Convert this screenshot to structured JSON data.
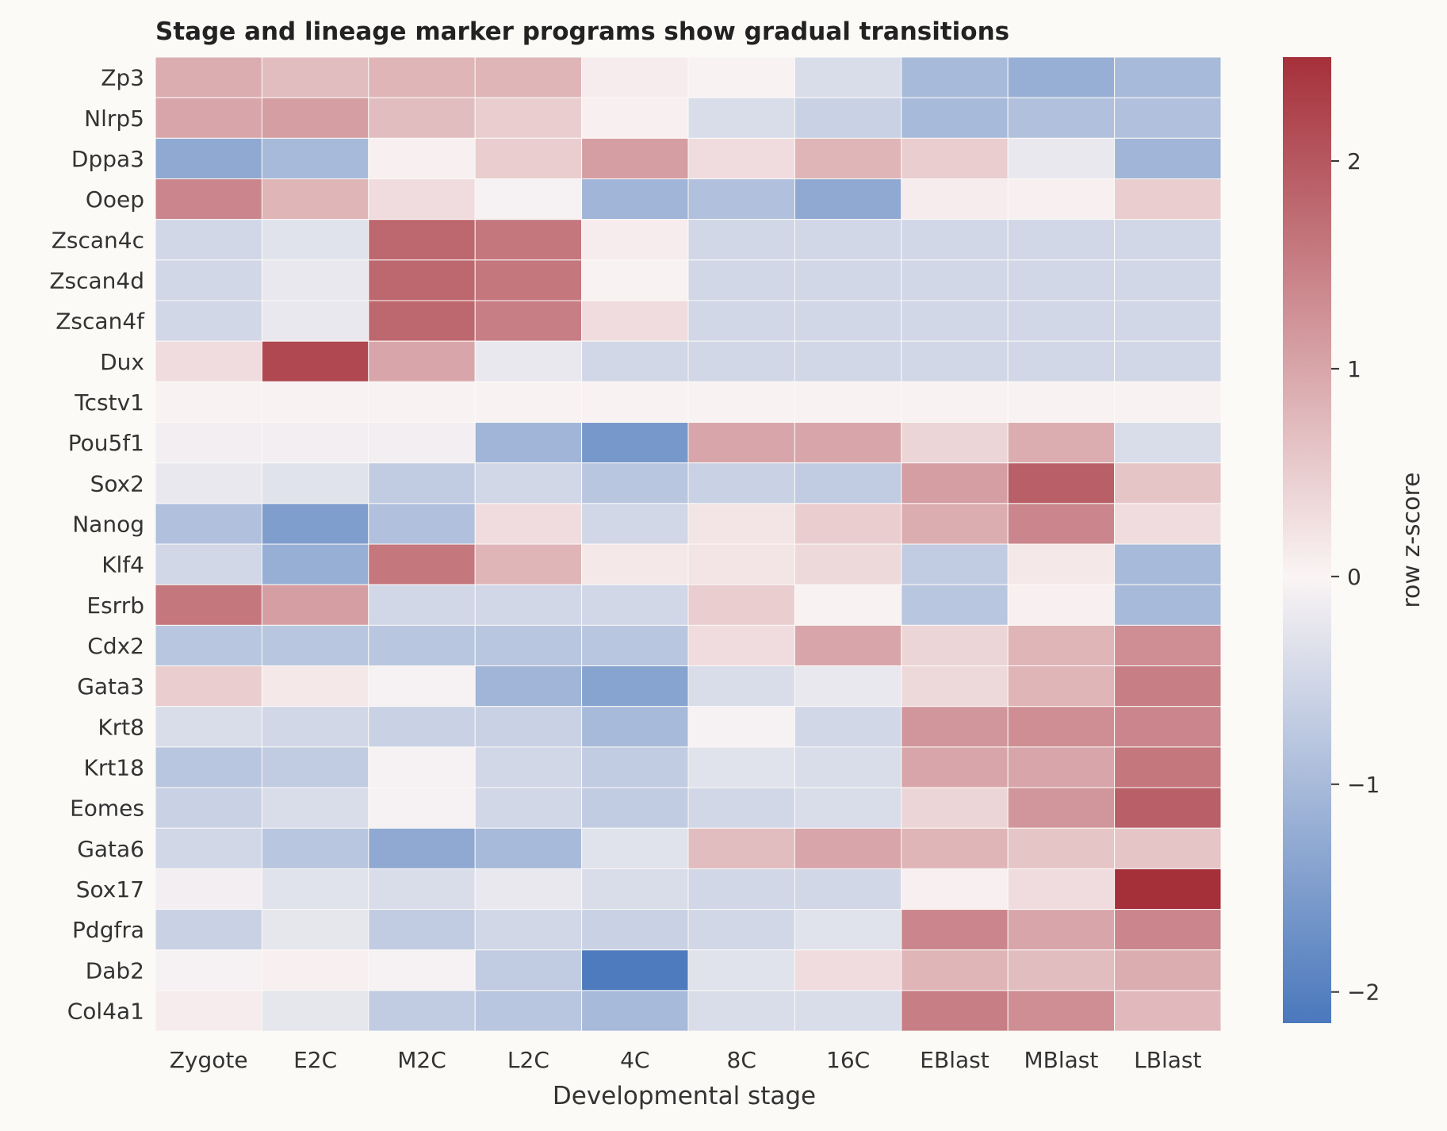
{
  "chart_data": {
    "type": "heatmap",
    "title": "Stage and lineage marker programs show gradual transitions",
    "xlabel": "Developmental stage",
    "ylabel": "",
    "x_categories": [
      "Zygote",
      "E2C",
      "M2C",
      "L2C",
      "4C",
      "8C",
      "16C",
      "EBlast",
      "MBlast",
      "LBlast"
    ],
    "y_categories": [
      "Zp3",
      "Nlrp5",
      "Dppa3",
      "Ooep",
      "Zscan4c",
      "Zscan4d",
      "Zscan4f",
      "Dux",
      "Tcstv1",
      "Pou5f1",
      "Sox2",
      "Nanog",
      "Klf4",
      "Esrrb",
      "Cdx2",
      "Gata3",
      "Krt8",
      "Krt18",
      "Eomes",
      "Gata6",
      "Sox17",
      "Pdgfra",
      "Dab2",
      "Col4a1"
    ],
    "values": [
      [
        0.9,
        0.7,
        0.8,
        0.8,
        0.1,
        0.02,
        -0.4,
        -1.0,
        -1.2,
        -1.0
      ],
      [
        1.0,
        1.1,
        0.7,
        0.5,
        0.05,
        -0.4,
        -0.6,
        -1.0,
        -0.9,
        -0.9
      ],
      [
        -1.3,
        -1.0,
        0.05,
        0.5,
        1.1,
        0.3,
        0.8,
        0.5,
        -0.2,
        -1.1
      ],
      [
        1.4,
        0.8,
        0.3,
        -0.05,
        -1.1,
        -0.9,
        -1.3,
        0.1,
        0.05,
        0.5
      ],
      [
        -0.5,
        -0.3,
        1.8,
        1.6,
        0.1,
        -0.5,
        -0.5,
        -0.5,
        -0.5,
        -0.5
      ],
      [
        -0.5,
        -0.2,
        1.8,
        1.6,
        0.02,
        -0.5,
        -0.5,
        -0.5,
        -0.5,
        -0.5
      ],
      [
        -0.5,
        -0.2,
        1.8,
        1.5,
        0.3,
        -0.5,
        -0.5,
        -0.5,
        -0.5,
        -0.5
      ],
      [
        0.3,
        2.2,
        1.0,
        -0.2,
        -0.5,
        -0.5,
        -0.5,
        -0.5,
        -0.5,
        -0.5
      ],
      [
        0.03,
        0.03,
        0.03,
        0.03,
        0.03,
        0.03,
        0.03,
        0.03,
        0.03,
        0.03
      ],
      [
        -0.1,
        -0.1,
        -0.1,
        -1.1,
        -1.6,
        1.0,
        1.0,
        0.4,
        0.9,
        -0.4
      ],
      [
        -0.2,
        -0.3,
        -0.7,
        -0.5,
        -0.8,
        -0.6,
        -0.7,
        1.1,
        1.9,
        0.6
      ],
      [
        -0.9,
        -1.5,
        -0.9,
        0.3,
        -0.5,
        0.2,
        0.5,
        0.9,
        1.4,
        0.3
      ],
      [
        -0.5,
        -1.2,
        1.6,
        0.8,
        0.15,
        0.2,
        0.35,
        -0.7,
        0.15,
        -1.0
      ],
      [
        1.6,
        1.1,
        -0.5,
        -0.5,
        -0.5,
        0.5,
        -0.03,
        -0.8,
        0.05,
        -1.0
      ],
      [
        -0.8,
        -0.8,
        -0.8,
        -0.8,
        -0.8,
        0.3,
        1.0,
        0.4,
        0.8,
        1.3
      ],
      [
        0.5,
        0.15,
        -0.05,
        -1.1,
        -1.4,
        -0.4,
        -0.2,
        0.35,
        0.8,
        1.5
      ],
      [
        -0.4,
        -0.5,
        -0.6,
        -0.6,
        -1.0,
        -0.05,
        -0.5,
        1.2,
        1.3,
        1.4
      ],
      [
        -0.8,
        -0.7,
        -0.05,
        -0.5,
        -0.7,
        -0.3,
        -0.4,
        1.0,
        1.0,
        1.6
      ],
      [
        -0.6,
        -0.4,
        -0.05,
        -0.5,
        -0.7,
        -0.5,
        -0.4,
        0.4,
        1.2,
        1.9
      ],
      [
        -0.5,
        -0.8,
        -1.3,
        -1.0,
        -0.3,
        0.7,
        1.0,
        0.8,
        0.6,
        0.6
      ],
      [
        -0.1,
        -0.3,
        -0.4,
        -0.2,
        -0.4,
        -0.5,
        -0.5,
        0.05,
        0.3,
        2.5
      ],
      [
        -0.6,
        -0.25,
        -0.7,
        -0.5,
        -0.6,
        -0.5,
        -0.3,
        1.4,
        1.0,
        1.4
      ],
      [
        -0.05,
        0.05,
        -0.05,
        -0.7,
        -2.1,
        -0.3,
        0.3,
        0.8,
        0.7,
        0.9
      ],
      [
        0.1,
        -0.25,
        -0.7,
        -0.8,
        -1.0,
        -0.4,
        -0.4,
        1.5,
        1.3,
        0.75
      ]
    ],
    "colorbar": {
      "label": "row z-score",
      "vmin": -2.15,
      "vmax": 2.5,
      "ticks": [
        -2,
        -1,
        0,
        1,
        2
      ],
      "tick_labels": [
        "−2",
        "−1",
        "0",
        "1",
        "2"
      ],
      "colormap": "vlag",
      "low_color": "#4a78bc",
      "mid_color": "#faf4f4",
      "high_color": "#a5303a"
    },
    "grid": false,
    "legend": "colorbar right"
  }
}
